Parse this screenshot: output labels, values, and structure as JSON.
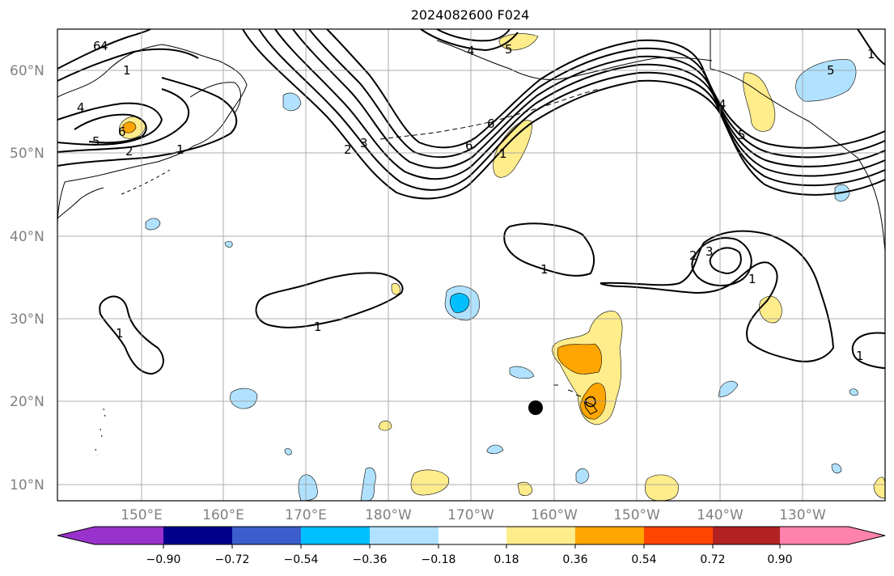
{
  "title": "2024082600 F024",
  "map": {
    "lat_ticks": [
      "10°N",
      "20°N",
      "30°N",
      "40°N",
      "50°N",
      "60°N"
    ],
    "lon_ticks": [
      "150°E",
      "160°E",
      "170°E",
      "180°W",
      "170°W",
      "160°W",
      "150°W",
      "140°W",
      "130°W"
    ]
  },
  "colorbar": {
    "ticks": [
      "−0.90",
      "−0.72",
      "−0.54",
      "−0.36",
      "−0.18",
      "0.18",
      "0.36",
      "0.54",
      "0.72",
      "0.90"
    ],
    "colors": [
      "#9932cc",
      "#00008b",
      "#3a5fcd",
      "#00bfff",
      "#b0e2ff",
      "#ffffff",
      "#ffec8b",
      "#ffa500",
      "#ff4500",
      "#b22222",
      "#ff82ab"
    ]
  },
  "contour_labels": [
    "1",
    "1",
    "1",
    "1",
    "1",
    "2",
    "3",
    "1",
    "1",
    "2",
    "3",
    "4",
    "5",
    "6",
    "4",
    "5",
    "6",
    "1",
    "2",
    "4",
    "5",
    "6",
    "1",
    "4",
    "5",
    "6"
  ],
  "fill_colors": {
    "light_yellow": "#ffec8b",
    "orange": "#ffa500",
    "light_blue": "#b0e2ff",
    "deep_sky_blue": "#00bfff"
  }
}
